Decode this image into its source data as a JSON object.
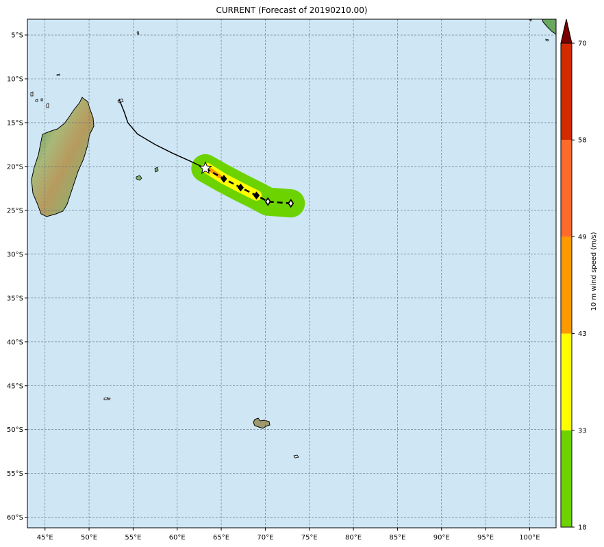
{
  "title": "CURRENT (Forecast of 20190210.00)",
  "map": {
    "lon_range": [
      43,
      103
    ],
    "lat_range": [
      -61.2,
      -3.2
    ],
    "ocean_color": "#cfe6f5",
    "grid_style": "dashed",
    "lon_ticks": [
      {
        "value": 45,
        "label": "45°E"
      },
      {
        "value": 50,
        "label": "50°E"
      },
      {
        "value": 55,
        "label": "55°E"
      },
      {
        "value": 60,
        "label": "60°E"
      },
      {
        "value": 65,
        "label": "65°E"
      },
      {
        "value": 70,
        "label": "70°E"
      },
      {
        "value": 75,
        "label": "75°E"
      },
      {
        "value": 80,
        "label": "80°E"
      },
      {
        "value": 85,
        "label": "85°E"
      },
      {
        "value": 90,
        "label": "90°E"
      },
      {
        "value": 95,
        "label": "95°E"
      },
      {
        "value": 100,
        "label": "100°E"
      }
    ],
    "lat_ticks": [
      {
        "value": -5,
        "label": "5°S"
      },
      {
        "value": -10,
        "label": "10°S"
      },
      {
        "value": -15,
        "label": "15°S"
      },
      {
        "value": -20,
        "label": "20°S"
      },
      {
        "value": -25,
        "label": "25°S"
      },
      {
        "value": -30,
        "label": "30°S"
      },
      {
        "value": -35,
        "label": "35°S"
      },
      {
        "value": -40,
        "label": "40°S"
      },
      {
        "value": -45,
        "label": "45°S"
      },
      {
        "value": -50,
        "label": "50°S"
      },
      {
        "value": -55,
        "label": "55°S"
      },
      {
        "value": -60,
        "label": "60°S"
      }
    ]
  },
  "storm": {
    "past_track": [
      [
        53.4,
        -12.3
      ],
      [
        54.0,
        -13.8
      ],
      [
        54.4,
        -15.0
      ],
      [
        55.5,
        -16.3
      ],
      [
        57.5,
        -17.5
      ],
      [
        59.5,
        -18.5
      ],
      [
        61.5,
        -19.4
      ],
      [
        63.2,
        -20.2
      ]
    ],
    "current_position": [
      63.2,
      -20.2
    ],
    "forecast_track": [
      [
        63.2,
        -20.2
      ],
      [
        65.3,
        -21.4
      ],
      [
        67.2,
        -22.4
      ],
      [
        69.0,
        -23.3
      ],
      [
        70.3,
        -24.0
      ],
      [
        72.9,
        -24.2
      ]
    ],
    "forecast_points": [
      {
        "lon": 65.3,
        "lat": -21.4,
        "filled": true
      },
      {
        "lon": 67.2,
        "lat": -22.4,
        "filled": true
      },
      {
        "lon": 69.0,
        "lat": -23.3,
        "filled": true
      },
      {
        "lon": 70.3,
        "lat": -24.0,
        "filled": false
      },
      {
        "lon": 72.9,
        "lat": -24.2,
        "filled": false
      }
    ],
    "swath": [
      {
        "level": 18,
        "color": "#6dd300",
        "width_deg": 3.2,
        "path": [
          [
            63.2,
            -20.2
          ],
          [
            65.3,
            -21.4
          ],
          [
            67.2,
            -22.4
          ],
          [
            69.0,
            -23.3
          ],
          [
            70.3,
            -24.0
          ],
          [
            72.9,
            -24.2
          ]
        ]
      },
      {
        "level": 33,
        "color": "#ffff00",
        "width_deg": 1.2,
        "path": [
          [
            63.4,
            -20.2
          ],
          [
            65.3,
            -21.4
          ],
          [
            67.2,
            -22.4
          ],
          [
            69.0,
            -23.3
          ]
        ]
      },
      {
        "level": 43,
        "color": "#ff9900",
        "width_deg": 0.45,
        "path": [
          [
            63.8,
            -20.4
          ],
          [
            64.8,
            -21.1
          ]
        ]
      }
    ]
  },
  "colorbar": {
    "label": "10 m wind speed (m/s)",
    "levels": [
      18,
      33,
      43,
      49,
      58,
      70
    ],
    "colors": [
      "#6dd300",
      "#ffff00",
      "#ff9900",
      "#ff6a2a",
      "#d42a00"
    ],
    "extend_color": "#7a0000"
  }
}
